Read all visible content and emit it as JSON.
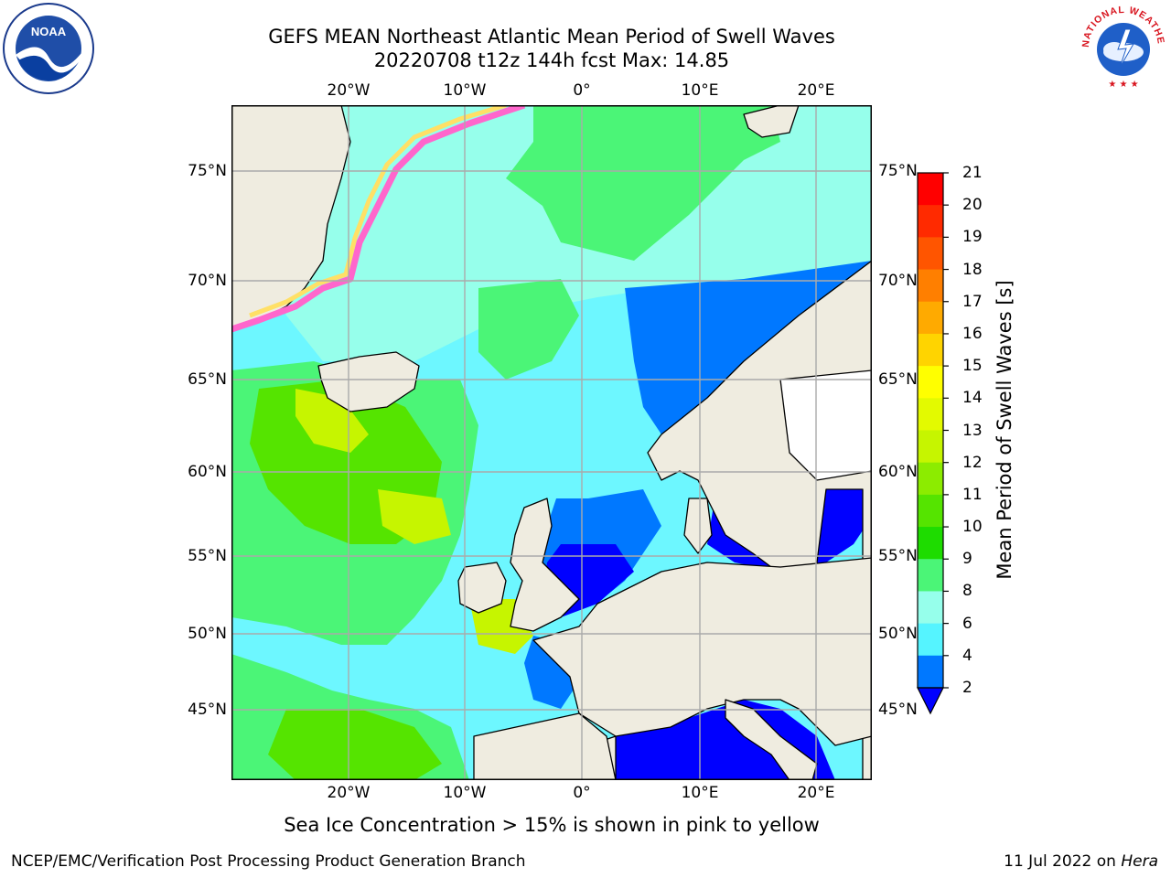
{
  "title": {
    "line1": "GEFS MEAN Northeast Atlantic Mean Period of Swell Waves",
    "line2": "20220708 t12z 144h fcst   Max: 14.85"
  },
  "map": {
    "lon_labels": [
      "20°W",
      "10°W",
      "0°",
      "10°E",
      "20°E"
    ],
    "lat_labels": [
      "75°N",
      "70°N",
      "65°N",
      "60°N",
      "55°N",
      "50°N",
      "45°N"
    ],
    "extent": {
      "lon_min": -30,
      "lon_max": 25,
      "lat_min": 41,
      "lat_max": 78
    }
  },
  "colorbar": {
    "label": "Mean Period of Swell Waves [s]",
    "ticks": [
      "21",
      "20",
      "19",
      "18",
      "17",
      "16",
      "15",
      "14",
      "13",
      "12",
      "11",
      "10",
      "9",
      "8",
      "6",
      "4",
      "2"
    ],
    "colors": [
      "#ff0000",
      "#ff2a00",
      "#ff5500",
      "#ff7f00",
      "#ffaa00",
      "#ffd400",
      "#ffff00",
      "#e3fa00",
      "#c6f500",
      "#8cec00",
      "#55e400",
      "#1edc00",
      "#4bf577",
      "#96ffeb",
      "#55f4ff",
      "#00e6ff",
      "#0078ff"
    ],
    "underflow_color": "#0000ff"
  },
  "note": "Sea Ice Concentration > 15% is shown in pink to yellow",
  "footer": {
    "left": "NCEP/EMC/Verification Post Processing Product Generation Branch",
    "right_prefix": "11 Jul 2022 on ",
    "right_host": "Hera"
  },
  "logos": {
    "noaa": "NOAA",
    "nws": "NATIONAL WEATHER SERVICE"
  }
}
